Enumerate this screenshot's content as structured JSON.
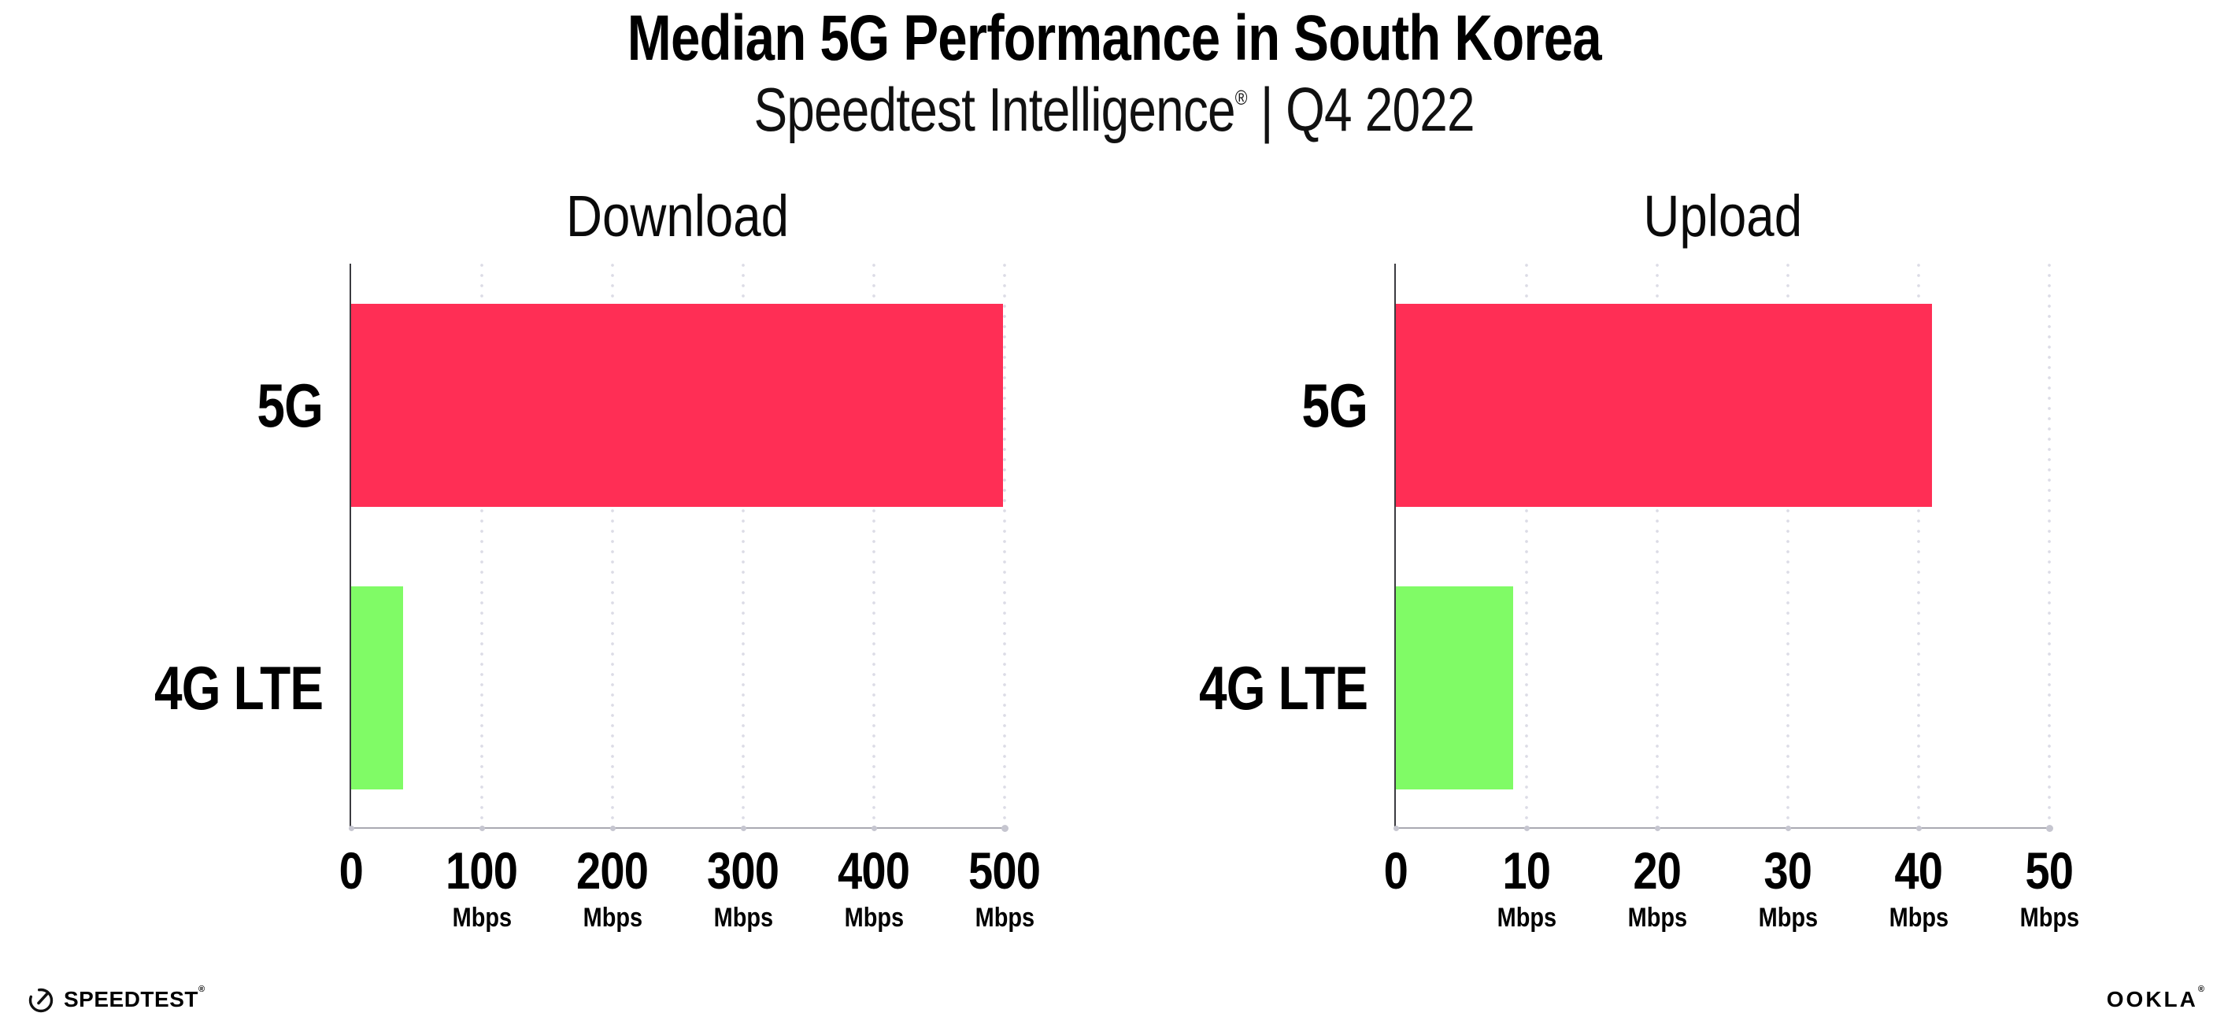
{
  "header": {
    "title": "Median 5G Performance in South Korea",
    "subtitle_brand": "Speedtest Intelligence",
    "subtitle_reg": "®",
    "subtitle_sep": "|",
    "subtitle_period": "Q4 2022"
  },
  "chart_data": [
    {
      "type": "bar",
      "orientation": "horizontal",
      "title": "Download",
      "categories": [
        "5G",
        "4G LTE"
      ],
      "values": [
        499,
        40
      ],
      "unit": "Mbps",
      "xlim": [
        0,
        500
      ],
      "xticks": [
        0,
        100,
        200,
        300,
        400,
        500
      ],
      "grid": "dotted-vertical",
      "legend": "none",
      "bar_colors": [
        "#FF2E55",
        "#80FB66"
      ]
    },
    {
      "type": "bar",
      "orientation": "horizontal",
      "title": "Upload",
      "categories": [
        "5G",
        "4G LTE"
      ],
      "values": [
        41,
        9
      ],
      "unit": "Mbps",
      "xlim": [
        0,
        50
      ],
      "xticks": [
        0,
        10,
        20,
        30,
        40,
        50
      ],
      "grid": "dotted-vertical",
      "legend": "none",
      "bar_colors": [
        "#FF2E55",
        "#80FB66"
      ]
    }
  ],
  "colors": {
    "bar_5g": "#FF2E55",
    "bar_4g_lte": "#80FB66",
    "gridline": "#DCDCE6",
    "y_axis": "#3B3B40",
    "x_axis": "#A9A9B2",
    "tick_dot": "#C6C6D0",
    "text": "#000000"
  },
  "footer": {
    "speedtest_label": "SPEEDTEST",
    "speedtest_mark": "®",
    "ookla_label": "OOKLA",
    "ookla_mark": "®"
  }
}
